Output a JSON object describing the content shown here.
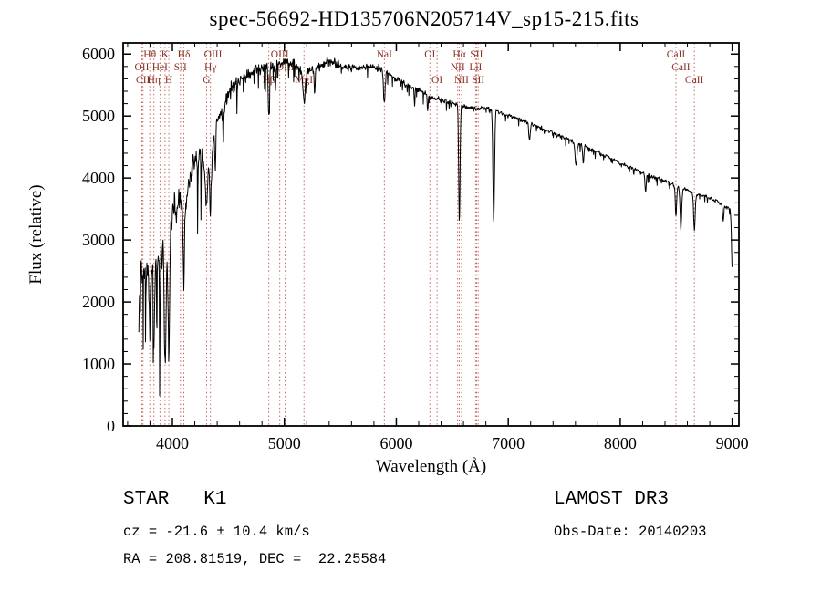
{
  "title": "spec-56692-HD135706N205714V_sp15-215.fits",
  "annotations": {
    "object_type": "STAR   K1",
    "survey": "LAMOST DR3",
    "cz": "cz = -21.6 ± 10.4 km/s",
    "obs_date": "Obs-Date: 20140203",
    "coords": "RA = 208.81519, DEC =  22.25584"
  },
  "chart_data": {
    "type": "line",
    "title": "spec-56692-HD135706N205714V_sp15-215.fits",
    "xlabel": "Wavelength (Å)",
    "ylabel": "Flux (relative)",
    "xlim": [
      3560,
      9060
    ],
    "ylim": [
      0,
      6180
    ],
    "x_ticks": [
      4000,
      5000,
      6000,
      7000,
      8000,
      9000
    ],
    "y_ticks": [
      0,
      1000,
      2000,
      3000,
      4000,
      5000,
      6000
    ],
    "x_minor_step": 200,
    "y_minor_step": 200,
    "grid": false,
    "legend": false,
    "line_color": "#000000",
    "marker_color": "#c0564a",
    "marker_label_color": "#8b2e23",
    "label_row_y": [
      63,
      77,
      91
    ],
    "wave_range": [
      3700,
      9002
    ],
    "wave_step": 3,
    "noise_seed": 20140203,
    "noise_spike_prob": 0.05,
    "continuum": [
      [
        3700,
        1500
      ],
      [
        3720,
        2500
      ],
      [
        3760,
        2350
      ],
      [
        3800,
        2600
      ],
      [
        3850,
        2600
      ],
      [
        3900,
        2850
      ],
      [
        3950,
        2800
      ],
      [
        4000,
        3400
      ],
      [
        4050,
        3600
      ],
      [
        4100,
        3550
      ],
      [
        4150,
        3950
      ],
      [
        4200,
        4300
      ],
      [
        4250,
        4350
      ],
      [
        4300,
        4250
      ],
      [
        4360,
        4450
      ],
      [
        4400,
        4900
      ],
      [
        4450,
        5100
      ],
      [
        4500,
        5350
      ],
      [
        4550,
        5500
      ],
      [
        4600,
        5600
      ],
      [
        4700,
        5700
      ],
      [
        4800,
        5800
      ],
      [
        4900,
        5820
      ],
      [
        5000,
        5870
      ],
      [
        5100,
        5820
      ],
      [
        5200,
        5720
      ],
      [
        5300,
        5800
      ],
      [
        5400,
        5870
      ],
      [
        5500,
        5820
      ],
      [
        5600,
        5760
      ],
      [
        5700,
        5800
      ],
      [
        5800,
        5810
      ],
      [
        5900,
        5700
      ],
      [
        6000,
        5600
      ],
      [
        6100,
        5500
      ],
      [
        6200,
        5420
      ],
      [
        6300,
        5320
      ],
      [
        6400,
        5260
      ],
      [
        6500,
        5210
      ],
      [
        6600,
        5160
      ],
      [
        6700,
        5110
      ],
      [
        6800,
        5130
      ],
      [
        6900,
        5080
      ],
      [
        7000,
        5010
      ],
      [
        7100,
        4950
      ],
      [
        7200,
        4880
      ],
      [
        7300,
        4800
      ],
      [
        7400,
        4720
      ],
      [
        7500,
        4650
      ],
      [
        7600,
        4570
      ],
      [
        7700,
        4500
      ],
      [
        7800,
        4420
      ],
      [
        7900,
        4330
      ],
      [
        8000,
        4240
      ],
      [
        8100,
        4160
      ],
      [
        8200,
        4080
      ],
      [
        8300,
        4010
      ],
      [
        8400,
        3950
      ],
      [
        8500,
        3880
      ],
      [
        8600,
        3800
      ],
      [
        8700,
        3730
      ],
      [
        8800,
        3680
      ],
      [
        8900,
        3590
      ],
      [
        9000,
        3470
      ]
    ],
    "noise_profile": [
      [
        3700,
        480
      ],
      [
        3900,
        430
      ],
      [
        4100,
        380
      ],
      [
        4300,
        290
      ],
      [
        4500,
        210
      ],
      [
        4700,
        150
      ],
      [
        4900,
        120
      ],
      [
        5100,
        110
      ],
      [
        5400,
        95
      ],
      [
        5700,
        85
      ],
      [
        6000,
        70
      ],
      [
        6400,
        55
      ],
      [
        6800,
        45
      ],
      [
        7200,
        42
      ],
      [
        7600,
        40
      ],
      [
        8000,
        36
      ],
      [
        8500,
        38
      ],
      [
        9000,
        42
      ]
    ],
    "absorption_features": [
      [
        3798,
        5,
        1100
      ],
      [
        3835,
        5,
        1200
      ],
      [
        3889,
        5,
        1100
      ],
      [
        3934,
        7,
        1900
      ],
      [
        3968,
        7,
        1800
      ],
      [
        4102,
        6,
        1300
      ],
      [
        4227,
        4,
        700
      ],
      [
        4305,
        9,
        700
      ],
      [
        4340,
        6,
        900
      ],
      [
        4383,
        4,
        600
      ],
      [
        4455,
        4,
        500
      ],
      [
        4861,
        6,
        800
      ],
      [
        4921,
        4,
        350
      ],
      [
        5175,
        10,
        550
      ],
      [
        5270,
        5,
        400
      ],
      [
        5893,
        7,
        500
      ],
      [
        6163,
        4,
        250
      ],
      [
        6280,
        4,
        250
      ],
      [
        6563,
        6,
        1900
      ],
      [
        6870,
        7,
        1800
      ],
      [
        7190,
        6,
        300
      ],
      [
        7605,
        8,
        380
      ],
      [
        7670,
        5,
        300
      ],
      [
        8227,
        5,
        300
      ],
      [
        8498,
        6,
        520
      ],
      [
        8542,
        7,
        640
      ],
      [
        8662,
        7,
        600
      ],
      [
        8920,
        5,
        250
      ],
      [
        9000,
        6,
        900
      ]
    ],
    "spectral_lines": [
      {
        "wavelength": 3727,
        "label": "OII",
        "row": 2
      },
      {
        "wavelength": 3737,
        "label": "CII",
        "row": 3
      },
      {
        "wavelength": 3798,
        "label": "Hθ",
        "row": 1
      },
      {
        "wavelength": 3835,
        "label": "Hη",
        "row": 3
      },
      {
        "wavelength": 3889,
        "label": "HeI",
        "row": 2
      },
      {
        "wavelength": 3934,
        "label": "K",
        "row": 1
      },
      {
        "wavelength": 3968,
        "label": "H",
        "row": 3
      },
      {
        "wavelength": 4072,
        "label": "SII",
        "row": 2
      },
      {
        "wavelength": 4102,
        "label": "Hδ",
        "row": 1
      },
      {
        "wavelength": 4305,
        "label": "G",
        "row": 3
      },
      {
        "wavelength": 4340,
        "label": "Hγ",
        "row": 2
      },
      {
        "wavelength": 4363,
        "label": "OIII",
        "row": 1
      },
      {
        "wavelength": 4861,
        "label": "Hβ",
        "row": 3
      },
      {
        "wavelength": 4959,
        "label": "OIII",
        "row": 1
      },
      {
        "wavelength": 5007,
        "label": "OIII",
        "row": 2
      },
      {
        "wavelength": 5175,
        "label": "MgI",
        "row": 3
      },
      {
        "wavelength": 5893,
        "label": "NaI",
        "row": 1
      },
      {
        "wavelength": 6300,
        "label": "OI",
        "row": 1
      },
      {
        "wavelength": 6364,
        "label": "OI",
        "row": 3
      },
      {
        "wavelength": 6548,
        "label": "NII",
        "row": 2
      },
      {
        "wavelength": 6563,
        "label": "Hα",
        "row": 1
      },
      {
        "wavelength": 6583,
        "label": "NII",
        "row": 3
      },
      {
        "wavelength": 6708,
        "label": "LiI",
        "row": 2
      },
      {
        "wavelength": 6717,
        "label": "SII",
        "row": 1
      },
      {
        "wavelength": 6731,
        "label": "SII",
        "row": 3
      },
      {
        "wavelength": 8498,
        "label": "CaII",
        "row": 1
      },
      {
        "wavelength": 8542,
        "label": "CaII",
        "row": 2
      },
      {
        "wavelength": 8662,
        "label": "CaII",
        "row": 3
      }
    ]
  }
}
